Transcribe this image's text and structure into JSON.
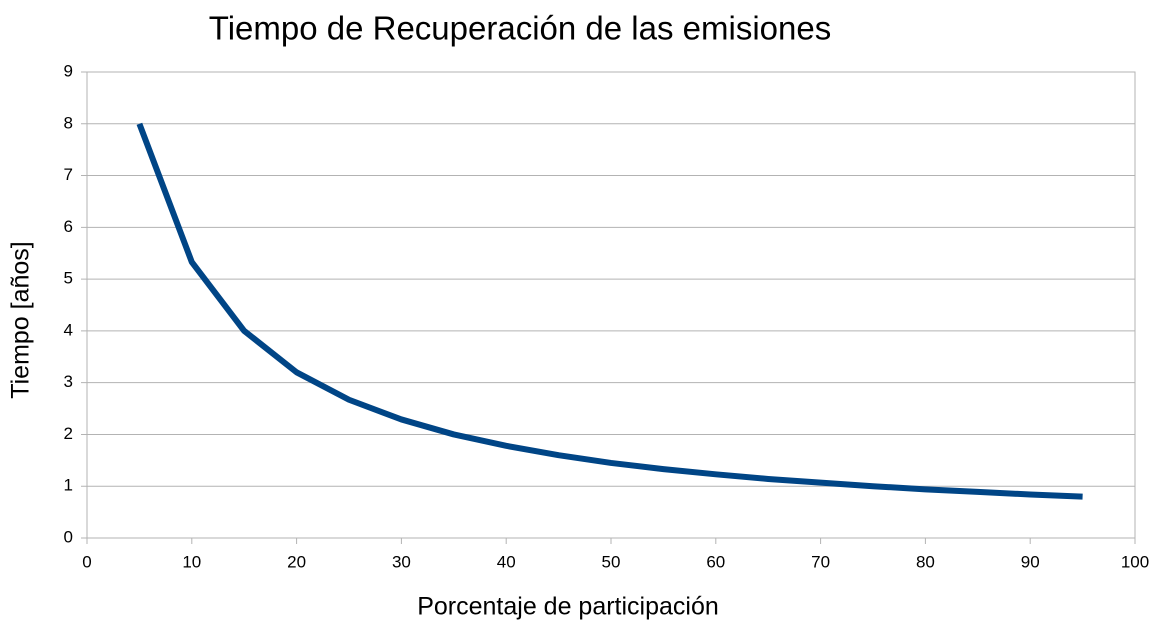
{
  "chart_data": {
    "type": "line",
    "title": "Tiempo de Recuperación de las emisiones",
    "x_label": "Porcentaje de participación",
    "y_label": "Tiempo [años]",
    "x": [
      5,
      10,
      15,
      20,
      25,
      30,
      35,
      40,
      45,
      50,
      55,
      60,
      65,
      70,
      75,
      80,
      85,
      90,
      95
    ],
    "series": [
      {
        "name": "Tiempo",
        "color": "#004586",
        "values": [
          8,
          5.33,
          4,
          3.2,
          2.67,
          2.29,
          2,
          1.78,
          1.6,
          1.45,
          1.33,
          1.23,
          1.14,
          1.07,
          1,
          0.94,
          0.89,
          0.84,
          0.8
        ]
      }
    ],
    "xlim": [
      0,
      100
    ],
    "xticks": [
      0,
      10,
      20,
      30,
      40,
      50,
      60,
      70,
      80,
      90,
      100
    ],
    "ylim": [
      0,
      9
    ],
    "yticks": [
      0,
      1,
      2,
      3,
      4,
      5,
      6,
      7,
      8,
      9
    ],
    "grid": true
  }
}
